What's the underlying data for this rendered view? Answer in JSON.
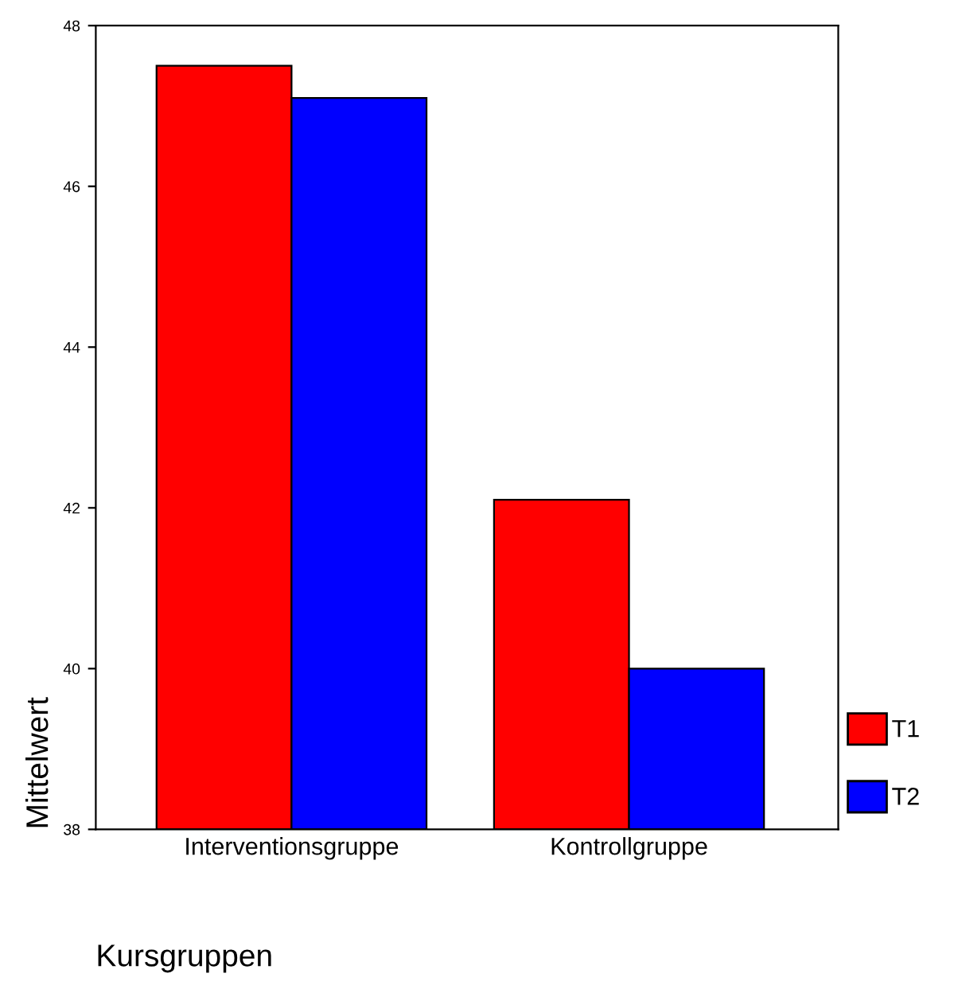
{
  "chart_data": {
    "type": "bar",
    "xlabel": "Kursgruppen",
    "ylabel": "Mittelwert",
    "categories": [
      "Interventionsgruppe",
      "Kontrollgruppe"
    ],
    "series": [
      {
        "name": "T1",
        "color": "#ff0000",
        "values": [
          47.5,
          42.1
        ]
      },
      {
        "name": "T2",
        "color": "#0000ff",
        "values": [
          47.1,
          40.0
        ]
      }
    ],
    "ylim": [
      38,
      48
    ],
    "yticks": [
      38,
      40,
      42,
      44,
      46,
      48
    ],
    "grid": false,
    "legend": "bottom right"
  }
}
